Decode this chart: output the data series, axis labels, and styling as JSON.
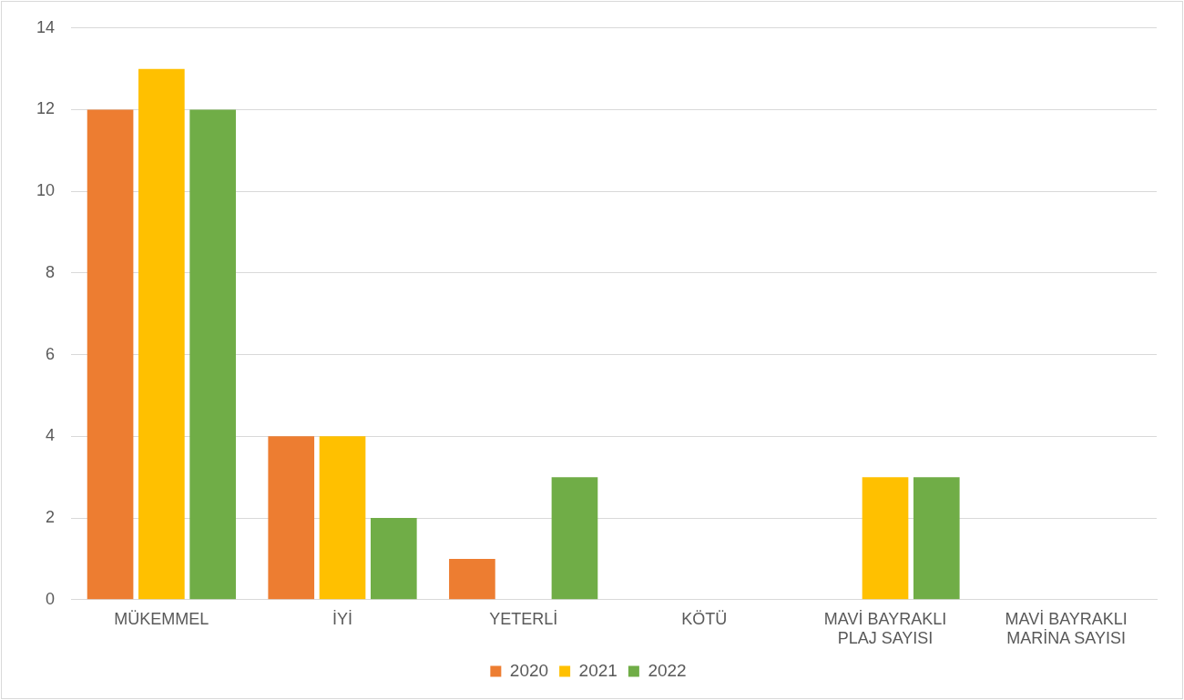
{
  "chart_data": {
    "type": "bar",
    "categories": [
      "MÜKEMMEL",
      "İYİ",
      "YETERLİ",
      "KÖTÜ",
      "MAVİ BAYRAKLI PLAJ SAYISI",
      "MAVİ BAYRAKLI MARİNA SAYISI"
    ],
    "series": [
      {
        "name": "2020",
        "color": "#ed7d31",
        "values": [
          12,
          4,
          1,
          0,
          0,
          0
        ]
      },
      {
        "name": "2021",
        "color": "#ffc000",
        "values": [
          13,
          4,
          0,
          0,
          3,
          0
        ]
      },
      {
        "name": "2022",
        "color": "#70ad47",
        "values": [
          12,
          2,
          3,
          0,
          3,
          0
        ]
      }
    ],
    "ylim": [
      0,
      14
    ],
    "yticks": [
      0,
      2,
      4,
      6,
      8,
      10,
      12,
      14
    ],
    "grid": "y",
    "legend": "bottom"
  }
}
